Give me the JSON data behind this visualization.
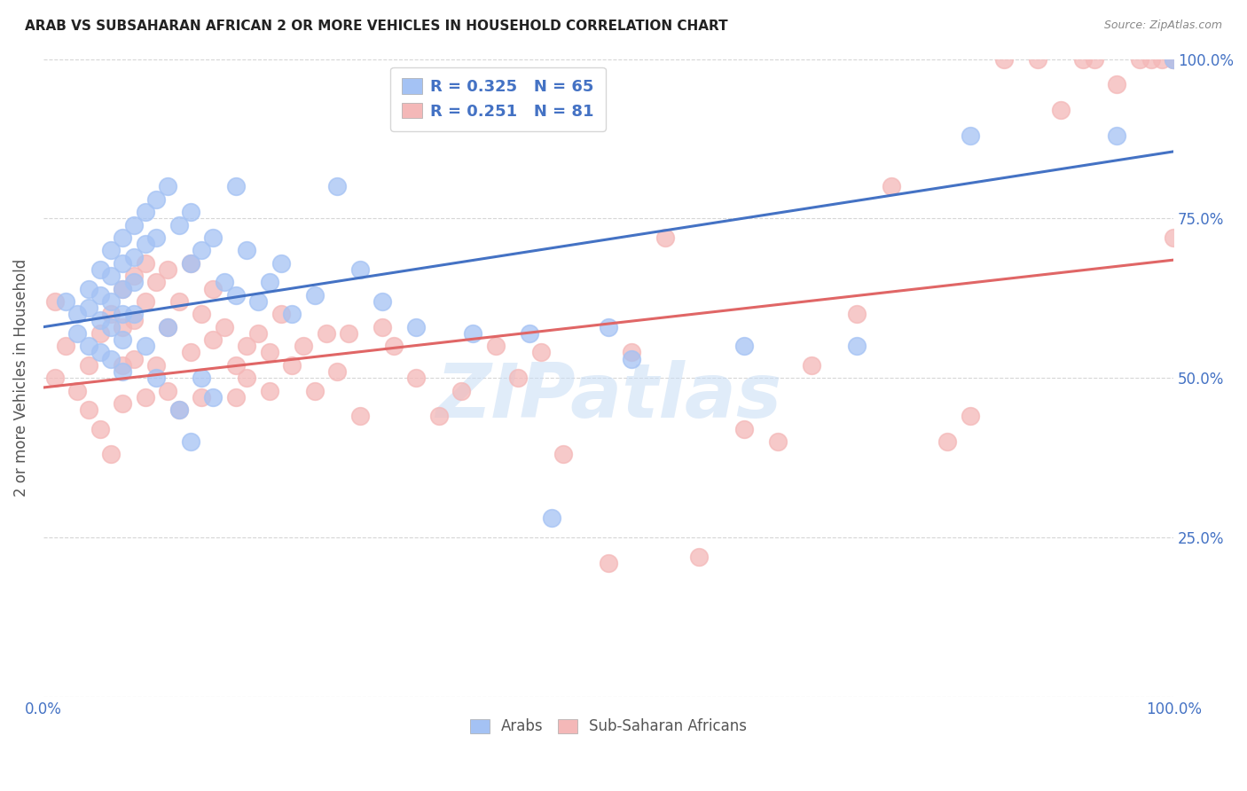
{
  "title": "ARAB VS SUBSAHARAN AFRICAN 2 OR MORE VEHICLES IN HOUSEHOLD CORRELATION CHART",
  "source": "Source: ZipAtlas.com",
  "ylabel": "2 or more Vehicles in Household",
  "xlim": [
    0,
    1
  ],
  "ylim": [
    0,
    1
  ],
  "legend_arab_R": "0.325",
  "legend_arab_N": "65",
  "legend_sub_R": "0.251",
  "legend_sub_N": "81",
  "arab_color": "#a4c2f4",
  "sub_color": "#f4b8b8",
  "arab_line_color": "#4472c4",
  "sub_line_color": "#e06666",
  "watermark": "ZIPatlas",
  "background_color": "#ffffff",
  "grid_color": "#cccccc",
  "arab_scatter_x": [
    0.02,
    0.03,
    0.03,
    0.04,
    0.04,
    0.04,
    0.05,
    0.05,
    0.05,
    0.05,
    0.06,
    0.06,
    0.06,
    0.06,
    0.06,
    0.07,
    0.07,
    0.07,
    0.07,
    0.07,
    0.07,
    0.08,
    0.08,
    0.08,
    0.08,
    0.09,
    0.09,
    0.09,
    0.1,
    0.1,
    0.1,
    0.11,
    0.11,
    0.12,
    0.12,
    0.13,
    0.13,
    0.13,
    0.14,
    0.14,
    0.15,
    0.15,
    0.16,
    0.17,
    0.17,
    0.18,
    0.19,
    0.2,
    0.21,
    0.22,
    0.24,
    0.26,
    0.28,
    0.3,
    0.33,
    0.38,
    0.43,
    0.45,
    0.5,
    0.52,
    0.62,
    0.72,
    0.82,
    0.95,
    1.0
  ],
  "arab_scatter_y": [
    0.62,
    0.6,
    0.57,
    0.64,
    0.61,
    0.55,
    0.67,
    0.63,
    0.59,
    0.54,
    0.7,
    0.66,
    0.62,
    0.58,
    0.53,
    0.72,
    0.68,
    0.64,
    0.6,
    0.56,
    0.51,
    0.74,
    0.69,
    0.65,
    0.6,
    0.76,
    0.71,
    0.55,
    0.78,
    0.72,
    0.5,
    0.8,
    0.58,
    0.74,
    0.45,
    0.76,
    0.68,
    0.4,
    0.7,
    0.5,
    0.72,
    0.47,
    0.65,
    0.8,
    0.63,
    0.7,
    0.62,
    0.65,
    0.68,
    0.6,
    0.63,
    0.8,
    0.67,
    0.62,
    0.58,
    0.57,
    0.57,
    0.28,
    0.58,
    0.53,
    0.55,
    0.55,
    0.88,
    0.88,
    1.0
  ],
  "sub_scatter_x": [
    0.01,
    0.01,
    0.02,
    0.03,
    0.04,
    0.04,
    0.05,
    0.05,
    0.06,
    0.06,
    0.07,
    0.07,
    0.07,
    0.07,
    0.08,
    0.08,
    0.08,
    0.09,
    0.09,
    0.09,
    0.1,
    0.1,
    0.11,
    0.11,
    0.11,
    0.12,
    0.12,
    0.13,
    0.13,
    0.14,
    0.14,
    0.15,
    0.15,
    0.16,
    0.17,
    0.17,
    0.18,
    0.18,
    0.19,
    0.2,
    0.2,
    0.21,
    0.22,
    0.23,
    0.24,
    0.25,
    0.26,
    0.27,
    0.28,
    0.3,
    0.31,
    0.33,
    0.35,
    0.37,
    0.4,
    0.42,
    0.44,
    0.46,
    0.5,
    0.52,
    0.55,
    0.58,
    0.62,
    0.65,
    0.68,
    0.72,
    0.75,
    0.8,
    0.82,
    0.85,
    0.88,
    0.9,
    0.92,
    0.93,
    0.95,
    0.97,
    0.98,
    0.99,
    1.0,
    1.0,
    1.0
  ],
  "sub_scatter_y": [
    0.5,
    0.62,
    0.55,
    0.48,
    0.52,
    0.45,
    0.57,
    0.42,
    0.6,
    0.38,
    0.64,
    0.58,
    0.52,
    0.46,
    0.66,
    0.59,
    0.53,
    0.68,
    0.62,
    0.47,
    0.65,
    0.52,
    0.67,
    0.58,
    0.48,
    0.62,
    0.45,
    0.68,
    0.54,
    0.6,
    0.47,
    0.64,
    0.56,
    0.58,
    0.52,
    0.47,
    0.55,
    0.5,
    0.57,
    0.54,
    0.48,
    0.6,
    0.52,
    0.55,
    0.48,
    0.57,
    0.51,
    0.57,
    0.44,
    0.58,
    0.55,
    0.5,
    0.44,
    0.48,
    0.55,
    0.5,
    0.54,
    0.38,
    0.21,
    0.54,
    0.72,
    0.22,
    0.42,
    0.4,
    0.52,
    0.6,
    0.8,
    0.4,
    0.44,
    1.0,
    1.0,
    0.92,
    1.0,
    1.0,
    0.96,
    1.0,
    1.0,
    1.0,
    0.72,
    1.0,
    1.0
  ],
  "arab_line_x0": 0.0,
  "arab_line_x1": 1.0,
  "arab_line_y0": 0.58,
  "arab_line_y1": 0.855,
  "sub_line_x0": 0.0,
  "sub_line_x1": 1.0,
  "sub_line_y0": 0.485,
  "sub_line_y1": 0.685
}
